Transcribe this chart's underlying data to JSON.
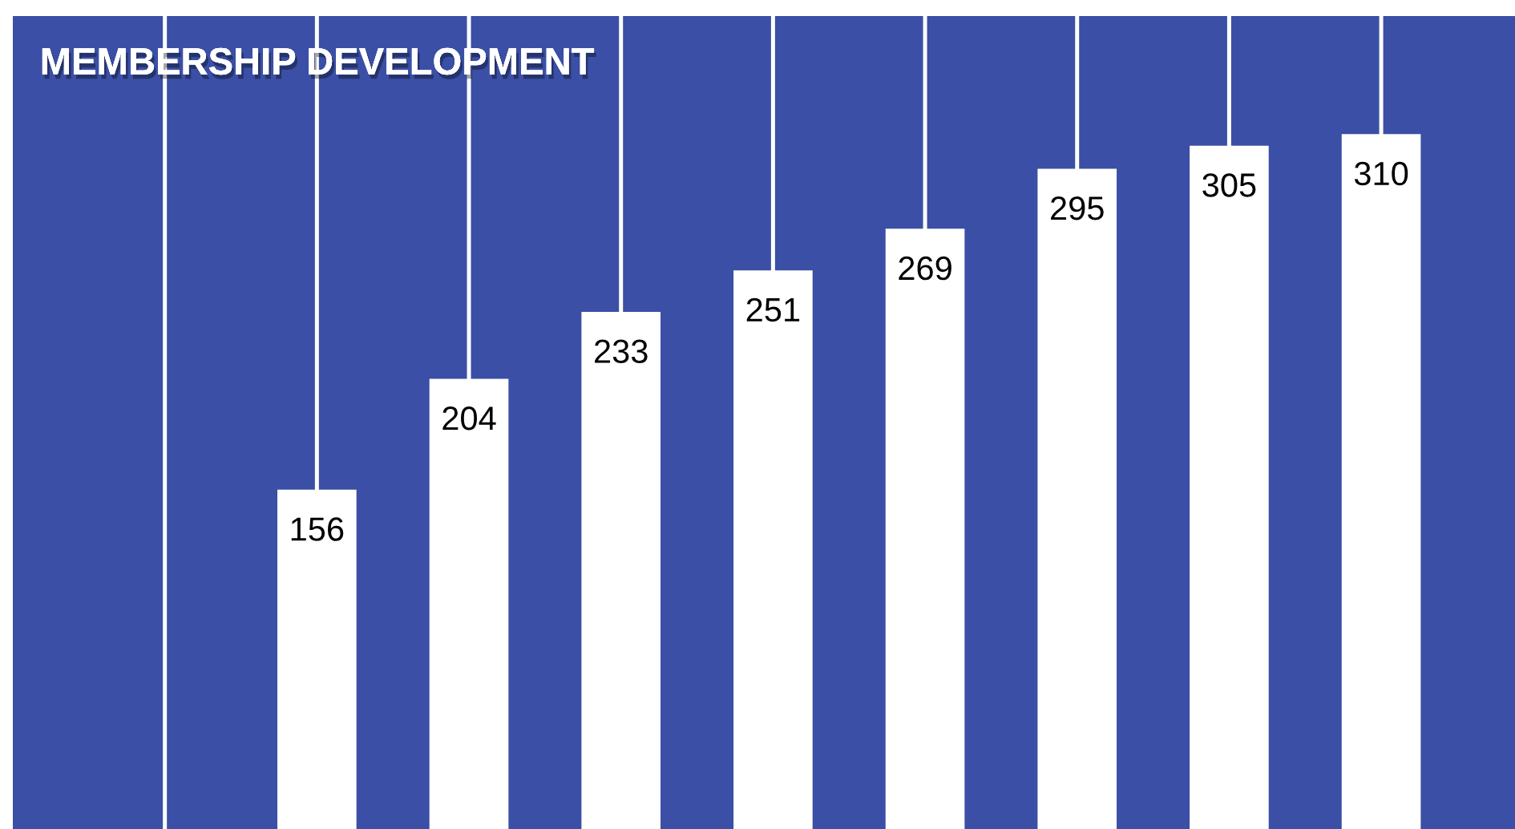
{
  "chart_data": {
    "type": "bar",
    "title": "MEMBERSHIP DEVELOPMENT",
    "categories": [
      null,
      null,
      null,
      null,
      null,
      null,
      null,
      null
    ],
    "values": [
      156,
      204,
      233,
      251,
      269,
      295,
      305,
      310
    ],
    "color": "#ffffff",
    "data_labels": true,
    "grid": "x"
  }
}
